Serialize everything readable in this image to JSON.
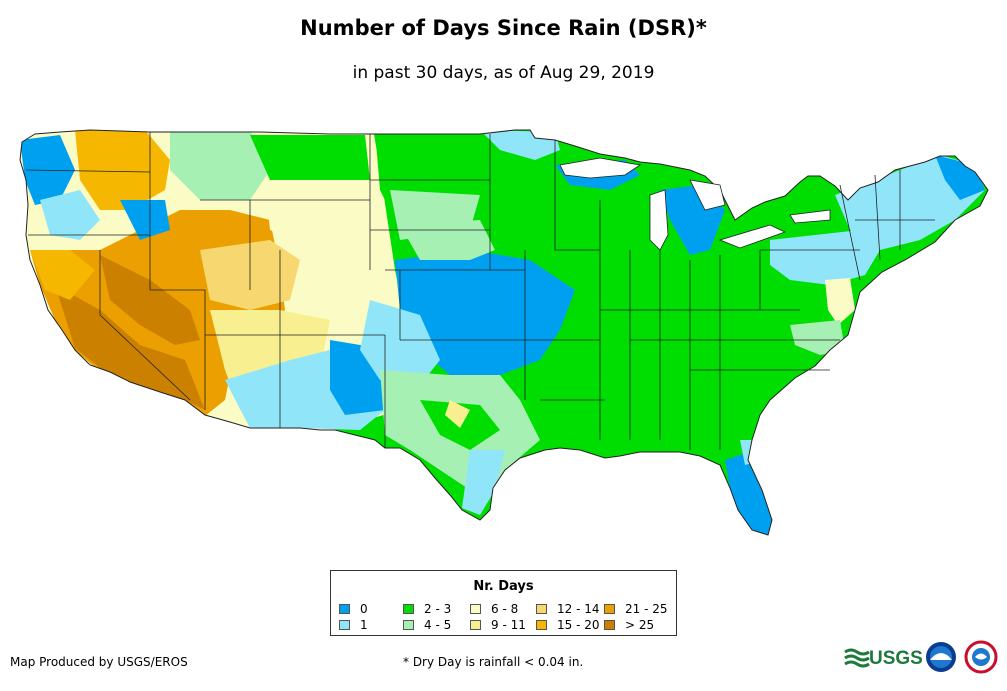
{
  "header": {
    "title": "Number of Days Since Rain (DSR)*",
    "subtitle": "in past 30 days, as of Aug 29, 2019"
  },
  "legend": {
    "title": "Nr. Days",
    "items": [
      {
        "label": "0",
        "color": "#00a0f0"
      },
      {
        "label": "1",
        "color": "#90e6f8"
      },
      {
        "label": "2 - 3",
        "color": "#00dd00"
      },
      {
        "label": "4 - 5",
        "color": "#a6f0b4"
      },
      {
        "label": "6 - 8",
        "color": "#fbfbc6"
      },
      {
        "label": "9 - 11",
        "color": "#f8f090"
      },
      {
        "label": "12 - 14",
        "color": "#f7d870"
      },
      {
        "label": "15 - 20",
        "color": "#f5b700"
      },
      {
        "label": "21 - 25",
        "color": "#eb9f00"
      },
      {
        "label": "> 25",
        "color": "#cc8000"
      }
    ]
  },
  "footer": {
    "credit": "Map Produced by USGS/EROS",
    "note": "* Dry Day is rainfall < 0.04 in.",
    "logos": [
      "usgs-logo",
      "noaa-logo",
      "nws-logo"
    ]
  }
}
